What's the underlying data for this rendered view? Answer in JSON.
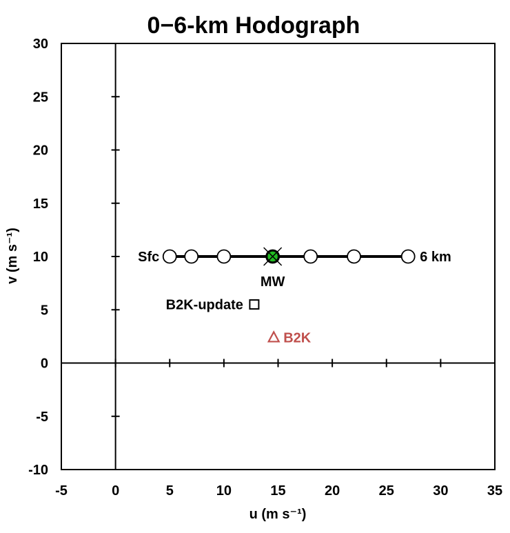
{
  "chart_data": {
    "type": "scatter",
    "title": "0−6-km Hodograph",
    "xlabel": "u (m s⁻¹)",
    "ylabel": "v (m s⁻¹)",
    "xlim": [
      -5,
      35
    ],
    "ylim": [
      -10,
      30
    ],
    "xticks": [
      "-5",
      "0",
      "5",
      "10",
      "15",
      "20",
      "25",
      "30",
      "35"
    ],
    "yticks": [
      "-10",
      "-5",
      "0",
      "5",
      "10",
      "15",
      "20",
      "25",
      "30"
    ],
    "grid": false,
    "series": [
      {
        "marker": "open-circle",
        "line": "solid",
        "color": "#000000",
        "x": [
          5,
          7,
          10,
          14.5,
          18,
          22,
          27
        ],
        "y": [
          10,
          10,
          10,
          10,
          10,
          10,
          10
        ]
      }
    ],
    "points": [
      {
        "label": "MW",
        "marker": "filled-circle-with-x",
        "color": "#22bb22",
        "x": 14.5,
        "y": 10
      },
      {
        "label": "B2K-update",
        "marker": "open-square",
        "color": "#000000",
        "x": 12.8,
        "y": 5.5
      },
      {
        "label": "B2K",
        "marker": "open-triangle",
        "color": "#c0504d",
        "x": 14.6,
        "y": 2.4
      }
    ],
    "annotations": [
      {
        "text": "Sfc",
        "color": "#000000"
      },
      {
        "text": "6 km",
        "color": "#000000"
      }
    ]
  }
}
